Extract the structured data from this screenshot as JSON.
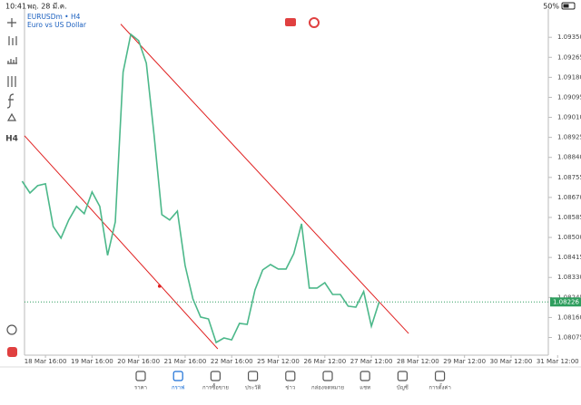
{
  "status_bar": {
    "time": "10:41",
    "date": "พฤ. 28 มี.ค.",
    "battery": "50%"
  },
  "symbol": {
    "name": "EURUSDm • H4",
    "description": "Euro vs US Dollar"
  },
  "toolbar": {
    "timeframe": "H4"
  },
  "chart_data": {
    "type": "line",
    "x": [
      -3,
      -2,
      -1,
      0,
      1,
      2,
      3,
      4,
      5,
      6,
      7,
      8,
      9,
      10,
      11,
      12,
      13,
      14,
      15,
      16,
      17,
      18,
      19,
      20,
      21,
      22,
      23,
      24,
      25,
      26,
      27,
      28,
      29,
      30,
      31,
      32,
      33,
      34,
      35,
      36,
      37,
      38,
      39,
      40,
      41,
      42,
      43
    ],
    "values": [
      1.08739,
      1.08689,
      1.0872,
      1.08728,
      1.08547,
      1.08497,
      1.08574,
      1.08632,
      1.08601,
      1.08693,
      1.08632,
      1.08424,
      1.08566,
      1.09202,
      1.09363,
      1.09336,
      1.0924,
      1.08932,
      1.08597,
      1.08574,
      1.08612,
      1.08381,
      1.08239,
      1.08162,
      1.08154,
      1.08054,
      1.08073,
      1.08065,
      1.08135,
      1.08131,
      1.08277,
      1.08362,
      1.08385,
      1.08366,
      1.08366,
      1.08431,
      1.08558,
      1.08285,
      1.08285,
      1.08308,
      1.08258,
      1.08258,
      1.08208,
      1.08204,
      1.0827,
      1.08123,
      1.08227
    ],
    "color": "#4cb88a",
    "xlim": [
      -2.7,
      64.8
    ],
    "xticks": [
      {
        "value": 0,
        "label": "18 Mar 16:00"
      },
      {
        "value": 6,
        "label": "19 Mar 16:00"
      },
      {
        "value": 12,
        "label": "20 Mar 16:00"
      },
      {
        "value": 18,
        "label": "21 Mar 16:00"
      },
      {
        "value": 24,
        "label": "22 Mar 16:00"
      },
      {
        "value": 30,
        "label": "25 Mar 12:00"
      },
      {
        "value": 36,
        "label": "26 Mar 12:00"
      },
      {
        "value": 42,
        "label": "27 Mar 12:00"
      },
      {
        "value": 48,
        "label": "28 Mar 12:00"
      },
      {
        "value": 54,
        "label": "29 Mar 12:00"
      },
      {
        "value": 60,
        "label": "30 Mar 12:00"
      },
      {
        "value": 66,
        "label": "31 Mar 12:00"
      }
    ],
    "ylim": [
      1.08,
      1.0947
    ],
    "yticks": [
      {
        "value": 1.0935,
        "label": "1.09350"
      },
      1.09265,
      {
        "value": 1.0918,
        "label": "1.09180"
      },
      1.09095,
      {
        "value": 1.0901,
        "label": "1.09010"
      },
      1.08925,
      {
        "value": 1.0884,
        "label": "1.08840"
      },
      1.08755,
      {
        "value": 1.0867,
        "label": "1.08670"
      },
      1.08585,
      {
        "value": 1.085,
        "label": "1.08500"
      },
      1.08415,
      {
        "value": 1.0833,
        "label": "1.08330"
      },
      1.08245,
      {
        "value": 1.0816,
        "label": "1.08160"
      },
      1.08075
    ],
    "trend_lines": [
      {
        "x": [
          9.7,
          46.8
        ],
        "y": [
          1.09406,
          1.08092
        ]
      },
      {
        "x": [
          -2.7,
          22.2
        ],
        "y": [
          1.08932,
          1.08027
        ]
      }
    ],
    "trend_color": "#e02020",
    "marker": {
      "x": 14.7,
      "y": 1.08293
    },
    "current_price": 1.08226,
    "current_price_color": "#2e9e5e"
  },
  "bottom_nav": {
    "items": [
      "ราคา",
      "กราฟ",
      "การซื้อขาย",
      "ประวัติ",
      "ข่าว",
      "กล่องจดหมาย",
      "แชท",
      "บัญชี",
      "การตั้งค่า"
    ],
    "active": 1
  }
}
